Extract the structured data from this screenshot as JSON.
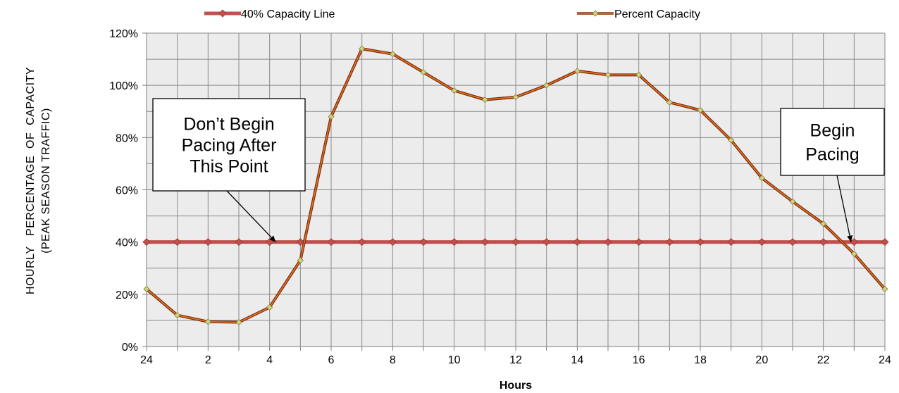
{
  "chart_data": {
    "type": "line",
    "title": "",
    "xlabel": "Hours",
    "ylabel_lines": [
      "HOURLY   PERCENTAGE  OF  CAPACITY",
      "(PEAK SEASON TRAFFIC)"
    ],
    "x_tick_labels": [
      "24",
      "2",
      "4",
      "6",
      "8",
      "10",
      "12",
      "14",
      "16",
      "18",
      "20",
      "22",
      "24"
    ],
    "y_tick_labels": [
      "0%",
      "20%",
      "40%",
      "60%",
      "80%",
      "100%",
      "120%"
    ],
    "ylim": [
      0,
      120
    ],
    "xlim": [
      0,
      24
    ],
    "grid": true,
    "legend_position": "top",
    "x": [
      0,
      1,
      2,
      3,
      4,
      5,
      6,
      7,
      8,
      9,
      10,
      11,
      12,
      13,
      14,
      15,
      16,
      17,
      18,
      19,
      20,
      21,
      22,
      23,
      24
    ],
    "series": [
      {
        "name": "40% Capacity Line",
        "color": "#c0504d",
        "marker_color": "#c0504d",
        "values": [
          40,
          40,
          40,
          40,
          40,
          40,
          40,
          40,
          40,
          40,
          40,
          40,
          40,
          40,
          40,
          40,
          40,
          40,
          40,
          40,
          40,
          40,
          40,
          40,
          40
        ]
      },
      {
        "name": "Percent Capacity",
        "color": "#b8501a",
        "marker_color": "#c9d38a",
        "values": [
          22,
          12,
          9.5,
          9.3,
          15,
          33,
          88,
          114,
          112,
          105,
          98,
          94.5,
          95.5,
          100,
          105.5,
          104,
          104,
          93.5,
          90.5,
          79,
          64.5,
          55.5,
          47,
          35.5,
          22
        ]
      }
    ],
    "annotations": [
      {
        "text_lines": [
          "Don’t Begin",
          "Pacing After",
          "This Point"
        ],
        "arrow_x": 4.2,
        "arrow_y": 40
      },
      {
        "text_lines": [
          "Begin",
          "Pacing"
        ],
        "arrow_x": 22.9,
        "arrow_y": 40
      }
    ]
  }
}
